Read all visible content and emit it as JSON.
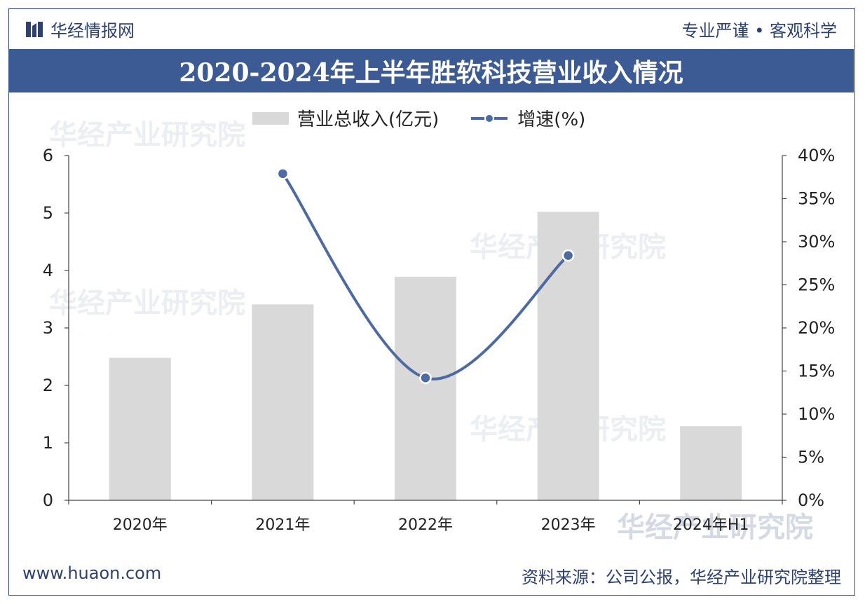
{
  "header": {
    "brand": "华经情报网",
    "motto": "专业严谨 • 客观科学"
  },
  "title": "2020-2024年上半年胜软科技营业收入情况",
  "legend": {
    "bar_label": "营业总收入(亿元)",
    "line_label": "增速(%)"
  },
  "footer": {
    "url": "www.huaon.com",
    "source": "资料来源：公司公报，华经产业研究院整理"
  },
  "watermark": {
    "text": "华经产业研究院",
    "url": "www.huaon.com"
  },
  "colors": {
    "brand": "#2c4170",
    "title_bg": "#3c5a94",
    "bar": "#d9d9d9",
    "line": "#4e6aa3"
  },
  "chart_data": {
    "type": "bar",
    "categories": [
      "2020年",
      "2021年",
      "2022年",
      "2023年",
      "2024年H1"
    ],
    "series": [
      {
        "name": "营业总收入(亿元)",
        "type": "bar",
        "axis": "left",
        "values": [
          2.48,
          3.41,
          3.89,
          5.02,
          1.29
        ]
      },
      {
        "name": "增速(%)",
        "type": "line",
        "axis": "right",
        "values": [
          null,
          37.9,
          14.2,
          28.4,
          null
        ]
      }
    ],
    "y_left": {
      "ylim": [
        0,
        6
      ],
      "ticks": [
        "0",
        "1",
        "2",
        "3",
        "4",
        "5",
        "6"
      ]
    },
    "y_right": {
      "ylim": [
        0,
        40
      ],
      "ticks": [
        "0%",
        "5%",
        "10%",
        "15%",
        "20%",
        "25%",
        "30%",
        "35%",
        "40%"
      ]
    },
    "grid": false,
    "legend": "top"
  }
}
